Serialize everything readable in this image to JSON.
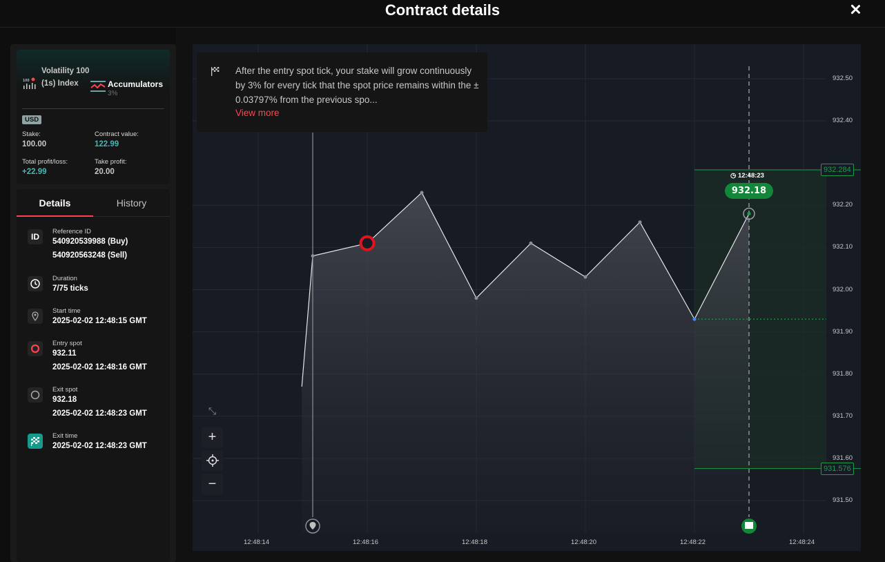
{
  "header": {
    "title": "Contract details"
  },
  "contract": {
    "symbol": "Volatility 100 (1s) Index",
    "trade_type": "Accumulators",
    "growth_rate": "3%",
    "currency": "USD",
    "stake_label": "Stake:",
    "stake_value": "100.00",
    "contract_value_label": "Contract value:",
    "contract_value": "122.99",
    "total_pl_label": "Total profit/loss:",
    "total_pl_value": "+22.99",
    "take_profit_label": "Take profit:",
    "take_profit_value": "20.00"
  },
  "tabs": {
    "details": "Details",
    "history": "History"
  },
  "details": {
    "reference_label": "Reference ID",
    "reference_buy": "540920539988 (Buy)",
    "reference_sell": "540920563248 (Sell)",
    "duration_label": "Duration",
    "duration_value": "7/75 ticks",
    "start_label": "Start time",
    "start_value": "2025-02-02 12:48:15 GMT",
    "entry_label": "Entry spot",
    "entry_price": "932.11",
    "entry_time": "2025-02-02 12:48:16 GMT",
    "exit_spot_label": "Exit spot",
    "exit_price": "932.18",
    "exit_spot_time": "2025-02-02 12:48:23 GMT",
    "exit_time_label": "Exit time",
    "exit_time_value": "2025-02-02 12:48:23 GMT",
    "id_badge": "ID"
  },
  "tooltip": {
    "text": "After the entry spot tick, your stake will grow continuously by 3% for every tick that the spot price remains within the ± 0.03797% from the previous spo...",
    "link": "View more"
  },
  "chart_data": {
    "type": "area",
    "x": [
      "12:48:14.8",
      "12:48:15",
      "12:48:16",
      "12:48:17",
      "12:48:18",
      "12:48:19",
      "12:48:20",
      "12:48:21",
      "12:48:22",
      "12:48:23"
    ],
    "values": [
      931.77,
      932.08,
      932.11,
      932.23,
      931.98,
      932.11,
      932.03,
      932.16,
      931.93,
      932.18
    ],
    "x_ticks": [
      "12:48:14",
      "12:48:16",
      "12:48:18",
      "12:48:20",
      "12:48:22",
      "12:48:24"
    ],
    "y_ticks": [
      "932.50",
      "932.40",
      "932.20",
      "932.10",
      "932.00",
      "931.90",
      "931.80",
      "931.70",
      "931.60",
      "931.50"
    ],
    "ylim": [
      931.45,
      932.55
    ],
    "upper_barrier": "932.284",
    "lower_barrier": "931.576",
    "current_price": "932.18",
    "current_time": "12:48:23",
    "colors": {
      "line": "#e6e6e6",
      "barrier": "#1e9b46",
      "entry": "#e1131c",
      "badge": "#12873a"
    }
  }
}
